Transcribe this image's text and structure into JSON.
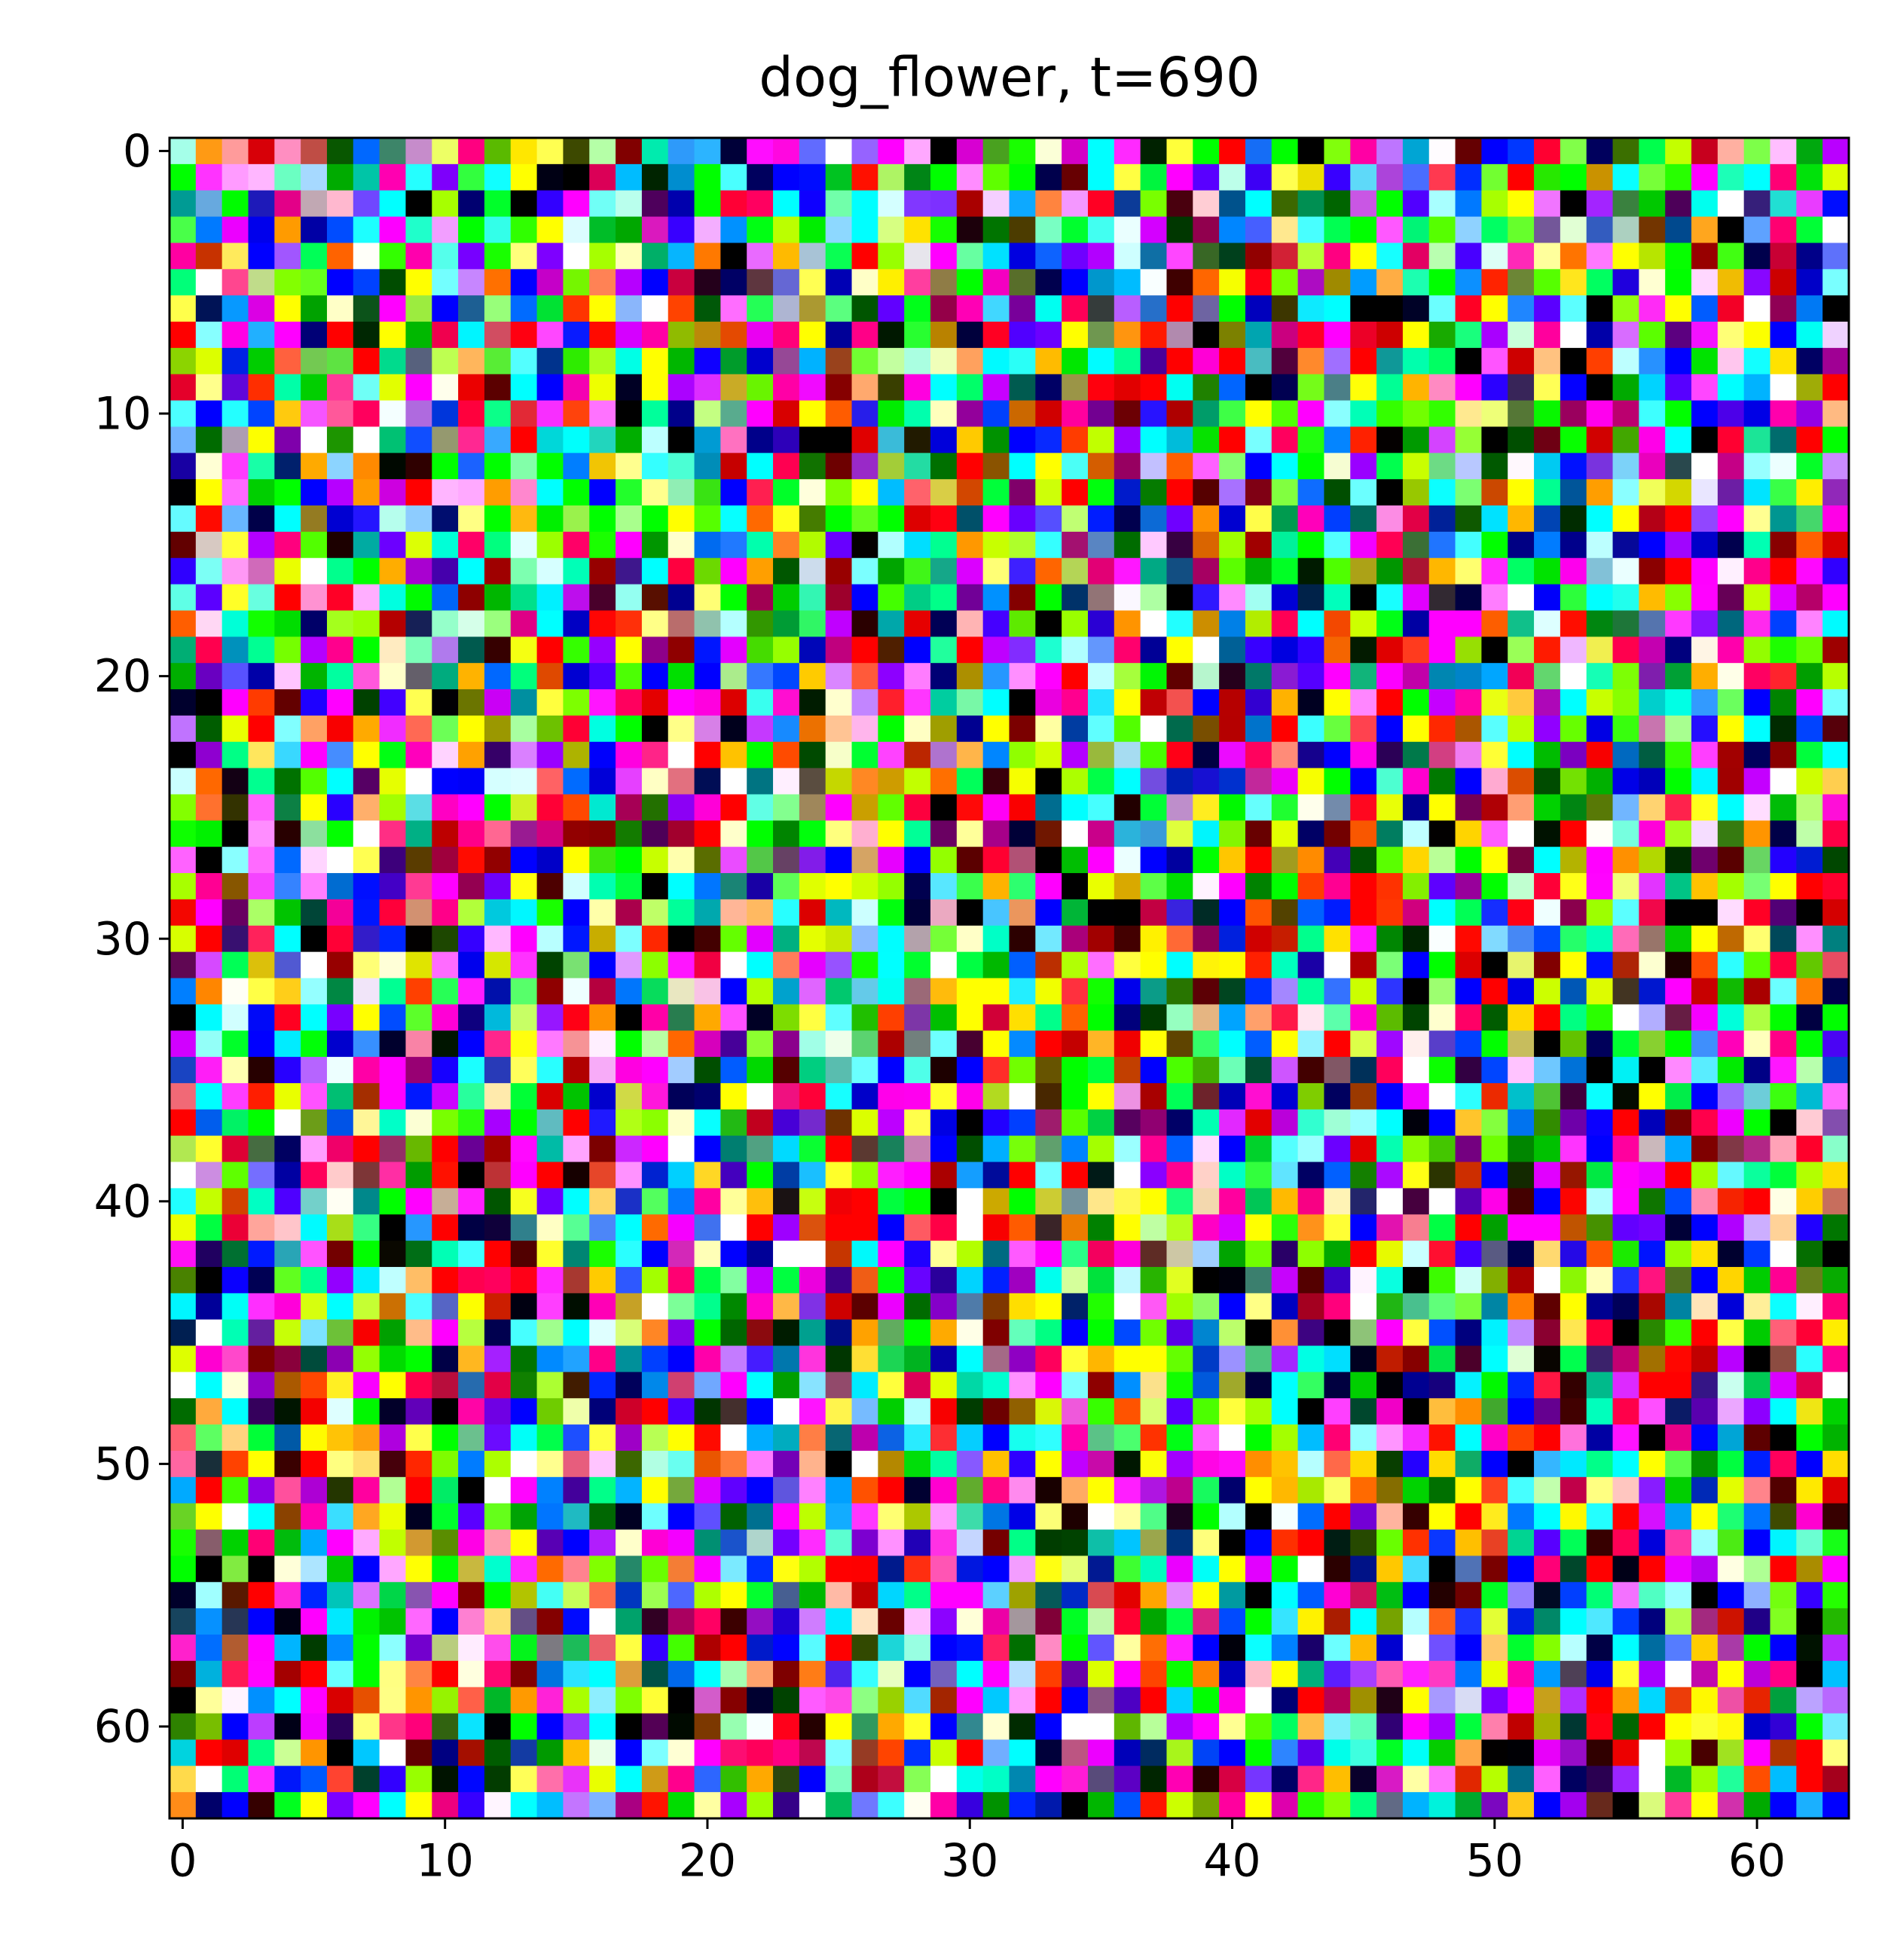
{
  "chart_data": {
    "type": "image",
    "title": "dog_flower, t=690",
    "xlim": [
      -0.5,
      63.5
    ],
    "ylim": [
      63.5,
      -0.5
    ],
    "xticks": [
      0,
      10,
      20,
      30,
      40,
      50,
      60
    ],
    "yticks": [
      0,
      10,
      20,
      30,
      40,
      50,
      60
    ]
  }
}
